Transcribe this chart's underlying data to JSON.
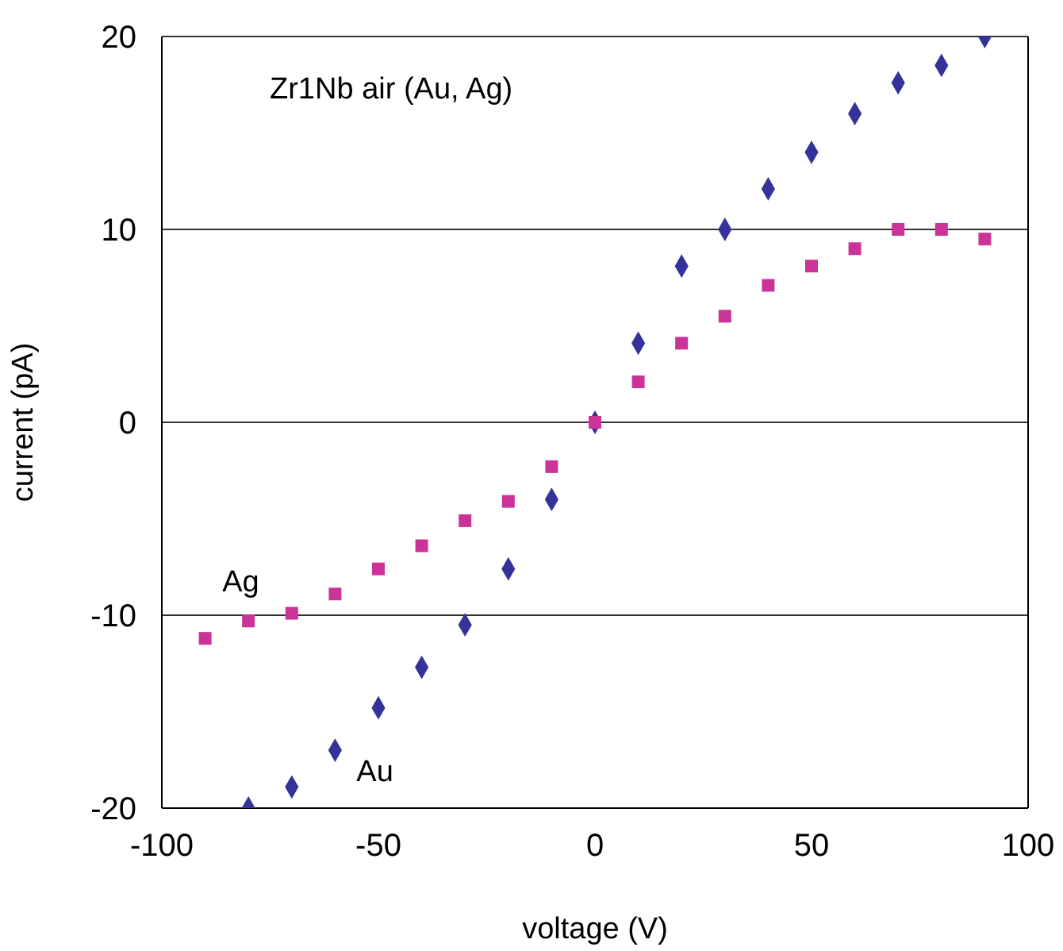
{
  "chart_data": {
    "type": "scatter",
    "title": "Zr1Nb air (Au, Ag)",
    "xlabel": "voltage (V)",
    "ylabel": "current (pA)",
    "xlim": [
      -100,
      100
    ],
    "xticks": [
      -100,
      -50,
      0,
      50,
      100
    ],
    "ylim": [
      -20,
      20
    ],
    "yticks": [
      -20,
      -10,
      0,
      10,
      20
    ],
    "grid": "y",
    "legend": false,
    "series": [
      {
        "name": "Au",
        "color": "#333399",
        "marker": "diamond",
        "x": [
          -80,
          -70,
          -60,
          -50,
          -40,
          -30,
          -20,
          -10,
          0,
          10,
          20,
          30,
          40,
          50,
          60,
          70,
          80,
          90
        ],
        "values": [
          -20,
          -18.9,
          -17,
          -14.8,
          -12.7,
          -10.5,
          -7.6,
          -4,
          0,
          4.1,
          8.1,
          10,
          12.1,
          14,
          16,
          17.6,
          18.5,
          20
        ]
      },
      {
        "name": "Ag",
        "color": "#cc3399",
        "marker": "square",
        "x": [
          -90,
          -80,
          -70,
          -60,
          -50,
          -40,
          -30,
          -20,
          -10,
          0,
          10,
          20,
          30,
          40,
          50,
          60,
          70,
          80,
          90
        ],
        "values": [
          -11.2,
          -10.3,
          -9.9,
          -8.9,
          -7.6,
          -6.4,
          -5.1,
          -4.1,
          -2.3,
          0,
          2.1,
          4.1,
          5.5,
          7.1,
          8.1,
          9,
          10,
          10,
          9.5
        ]
      }
    ]
  }
}
